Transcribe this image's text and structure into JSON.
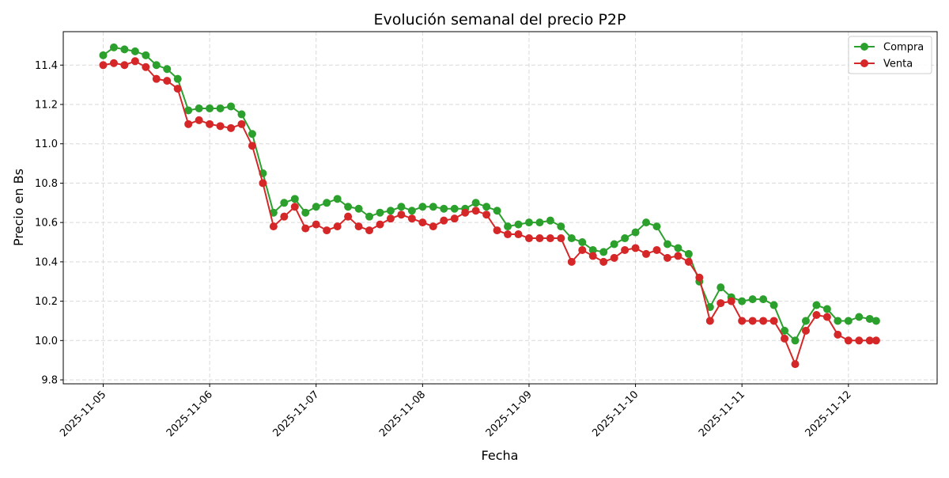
{
  "chart_data": {
    "type": "line",
    "title": "Evolución semanal del precio P2P",
    "xlabel": "Fecha",
    "ylabel": "Precio en Bs",
    "xlim": [
      "2025-11-04T15:00",
      "2025-11-12T20:00"
    ],
    "ylim": [
      9.78,
      11.57
    ],
    "yticks": [
      "9.8",
      "10.0",
      "10.2",
      "10.4",
      "10.6",
      "10.8",
      "11.0",
      "11.2",
      "11.4"
    ],
    "xticks": [
      "2025-11-05",
      "2025-11-06",
      "2025-11-07",
      "2025-11-08",
      "2025-11-09",
      "2025-11-10",
      "2025-11-11",
      "2025-11-12"
    ],
    "grid": true,
    "legend": "top-right",
    "x": [
      "2025-11-05T00:00",
      "2025-11-05T02:24",
      "2025-11-05T04:48",
      "2025-11-05T07:12",
      "2025-11-05T09:36",
      "2025-11-05T12:00",
      "2025-11-05T14:24",
      "2025-11-05T16:48",
      "2025-11-05T19:12",
      "2025-11-05T21:36",
      "2025-11-06T00:00",
      "2025-11-06T02:24",
      "2025-11-06T04:48",
      "2025-11-06T07:12",
      "2025-11-06T09:36",
      "2025-11-06T12:00",
      "2025-11-06T14:24",
      "2025-11-06T16:48",
      "2025-11-06T19:12",
      "2025-11-06T21:36",
      "2025-11-07T00:00",
      "2025-11-07T02:24",
      "2025-11-07T04:48",
      "2025-11-07T07:12",
      "2025-11-07T09:36",
      "2025-11-07T12:00",
      "2025-11-07T14:24",
      "2025-11-07T16:48",
      "2025-11-07T19:12",
      "2025-11-07T21:36",
      "2025-11-08T00:00",
      "2025-11-08T02:24",
      "2025-11-08T04:48",
      "2025-11-08T07:12",
      "2025-11-08T09:36",
      "2025-11-08T12:00",
      "2025-11-08T14:24",
      "2025-11-08T16:48",
      "2025-11-08T19:12",
      "2025-11-08T21:36",
      "2025-11-09T00:00",
      "2025-11-09T02:24",
      "2025-11-09T04:48",
      "2025-11-09T07:12",
      "2025-11-09T09:36",
      "2025-11-09T12:00",
      "2025-11-09T14:24",
      "2025-11-09T16:48",
      "2025-11-09T19:12",
      "2025-11-09T21:36",
      "2025-11-10T00:00",
      "2025-11-10T02:24",
      "2025-11-10T04:48",
      "2025-11-10T07:12",
      "2025-11-10T09:36",
      "2025-11-10T12:00",
      "2025-11-10T14:24",
      "2025-11-10T16:48",
      "2025-11-10T19:12",
      "2025-11-10T21:36",
      "2025-11-11T00:00",
      "2025-11-11T02:24",
      "2025-11-11T04:48",
      "2025-11-11T07:12",
      "2025-11-11T09:36",
      "2025-11-11T12:00",
      "2025-11-11T14:24",
      "2025-11-11T16:48",
      "2025-11-11T19:12",
      "2025-11-11T21:36",
      "2025-11-12T00:00",
      "2025-11-12T02:24",
      "2025-11-12T04:48",
      "2025-11-12T06:15"
    ],
    "series": [
      {
        "name": "Compra",
        "color": "#2ca02c",
        "values": [
          11.45,
          11.49,
          11.48,
          11.47,
          11.45,
          11.4,
          11.38,
          11.33,
          11.17,
          11.18,
          11.18,
          11.18,
          11.19,
          11.15,
          11.05,
          10.85,
          10.65,
          10.7,
          10.72,
          10.65,
          10.68,
          10.7,
          10.72,
          10.68,
          10.67,
          10.63,
          10.65,
          10.66,
          10.68,
          10.66,
          10.68,
          10.68,
          10.67,
          10.67,
          10.67,
          10.7,
          10.68,
          10.66,
          10.58,
          10.59,
          10.6,
          10.6,
          10.61,
          10.58,
          10.52,
          10.5,
          10.46,
          10.45,
          10.49,
          10.52,
          10.55,
          10.6,
          10.58,
          10.49,
          10.47,
          10.44,
          10.3,
          10.17,
          10.27,
          10.22,
          10.2,
          10.21,
          10.21,
          10.18,
          10.05,
          10.0,
          10.1,
          10.18,
          10.16,
          10.1,
          10.1,
          10.12,
          10.11,
          10.1
        ]
      },
      {
        "name": "Venta",
        "color": "#d62728",
        "values": [
          11.4,
          11.41,
          11.4,
          11.42,
          11.39,
          11.33,
          11.32,
          11.28,
          11.1,
          11.12,
          11.1,
          11.09,
          11.08,
          11.1,
          10.99,
          10.8,
          10.58,
          10.63,
          10.68,
          10.57,
          10.59,
          10.56,
          10.58,
          10.63,
          10.58,
          10.56,
          10.59,
          10.62,
          10.64,
          10.62,
          10.6,
          10.58,
          10.61,
          10.62,
          10.65,
          10.66,
          10.64,
          10.56,
          10.54,
          10.54,
          10.52,
          10.52,
          10.52,
          10.52,
          10.4,
          10.46,
          10.43,
          10.4,
          10.42,
          10.46,
          10.47,
          10.44,
          10.46,
          10.42,
          10.43,
          10.4,
          10.32,
          10.1,
          10.19,
          10.2,
          10.1,
          10.1,
          10.1,
          10.1,
          10.01,
          9.88,
          10.05,
          10.13,
          10.12,
          10.03,
          10.0,
          10.0,
          10.0,
          10.0
        ]
      }
    ]
  }
}
